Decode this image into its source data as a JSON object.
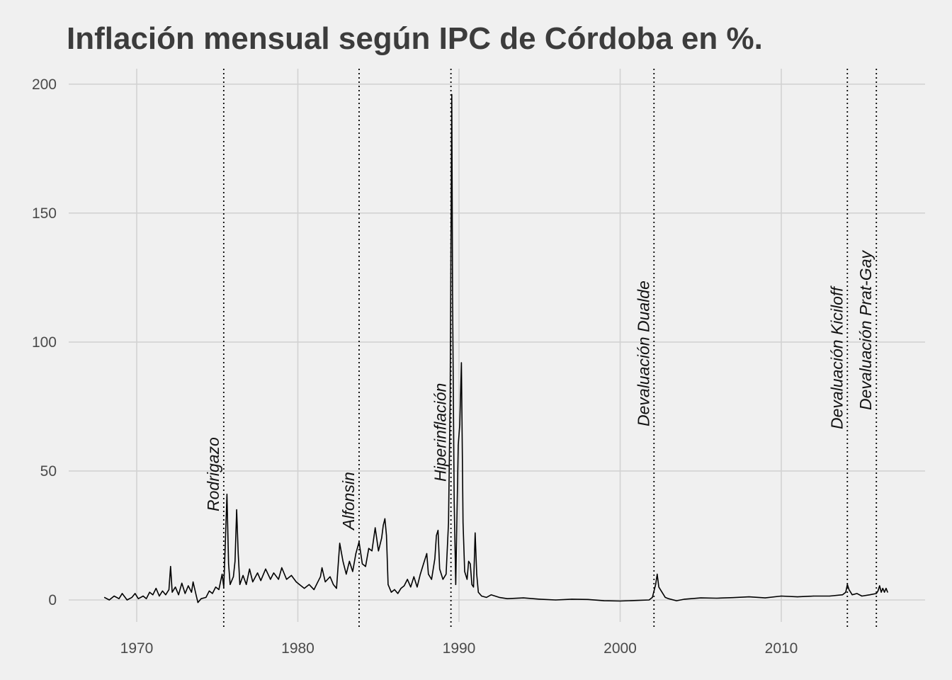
{
  "chart_data": {
    "type": "line",
    "title": "Inflación mensual según IPC de Córdoba en %.",
    "xlabel": "",
    "ylabel": "",
    "xlim": [
      1966.2,
      1991.0,
      2017.6
    ],
    "ylim": [
      -8,
      210
    ],
    "x_ticks": [
      1970,
      1980,
      1990,
      2000,
      2010
    ],
    "y_ticks": [
      0,
      50,
      100,
      150,
      200
    ],
    "grid": true,
    "line_color": "#000000",
    "background_color": "#f0f0f0",
    "grid_color": "#d2d2d2",
    "events": [
      {
        "label": "Rodrigazo",
        "x": 1975.4
      },
      {
        "label": "Alfonsin",
        "x": 1983.8
      },
      {
        "label": "Hiperinflación",
        "x": 1989.5
      },
      {
        "label": "Devaluación Dualde",
        "x": 2002.1
      },
      {
        "label": "Devaluación Kiciloff",
        "x": 2014.1
      },
      {
        "label": "Devaluación Prat-Gay",
        "x": 2015.9
      }
    ],
    "series": [
      {
        "values": [
          [
            1968.0,
            1.0
          ],
          [
            1968.3,
            0.0
          ],
          [
            1968.6,
            1.5
          ],
          [
            1968.9,
            0.5
          ],
          [
            1969.1,
            2.5
          ],
          [
            1969.4,
            0.0
          ],
          [
            1969.7,
            1.0
          ],
          [
            1969.9,
            2.5
          ],
          [
            1970.1,
            0.5
          ],
          [
            1970.4,
            1.5
          ],
          [
            1970.6,
            0.5
          ],
          [
            1970.8,
            3.0
          ],
          [
            1971.0,
            2.0
          ],
          [
            1971.2,
            4.5
          ],
          [
            1971.4,
            1.5
          ],
          [
            1971.6,
            3.5
          ],
          [
            1971.8,
            2.0
          ],
          [
            1972.0,
            4.0
          ],
          [
            1972.1,
            13.0
          ],
          [
            1972.2,
            3.0
          ],
          [
            1972.4,
            5.0
          ],
          [
            1972.6,
            2.0
          ],
          [
            1972.8,
            6.5
          ],
          [
            1973.0,
            2.5
          ],
          [
            1973.2,
            5.5
          ],
          [
            1973.4,
            3.0
          ],
          [
            1973.5,
            7.0
          ],
          [
            1973.7,
            1.5
          ],
          [
            1973.8,
            -1.0
          ],
          [
            1974.0,
            0.5
          ],
          [
            1974.3,
            1.0
          ],
          [
            1974.5,
            3.5
          ],
          [
            1974.7,
            2.5
          ],
          [
            1974.9,
            5.0
          ],
          [
            1975.1,
            4.0
          ],
          [
            1975.3,
            10.0
          ],
          [
            1975.4,
            5.0
          ],
          [
            1975.5,
            22.0
          ],
          [
            1975.6,
            41.0
          ],
          [
            1975.7,
            14.0
          ],
          [
            1975.8,
            6.0
          ],
          [
            1976.0,
            9.0
          ],
          [
            1976.1,
            15.0
          ],
          [
            1976.2,
            35.0
          ],
          [
            1976.3,
            18.0
          ],
          [
            1976.4,
            6.0
          ],
          [
            1976.6,
            9.5
          ],
          [
            1976.8,
            6.0
          ],
          [
            1977.0,
            12.0
          ],
          [
            1977.2,
            7.0
          ],
          [
            1977.5,
            10.5
          ],
          [
            1977.7,
            7.5
          ],
          [
            1978.0,
            12.0
          ],
          [
            1978.3,
            8.0
          ],
          [
            1978.5,
            10.5
          ],
          [
            1978.8,
            8.0
          ],
          [
            1979.0,
            12.5
          ],
          [
            1979.3,
            8.0
          ],
          [
            1979.6,
            9.5
          ],
          [
            1979.9,
            7.0
          ],
          [
            1980.1,
            6.0
          ],
          [
            1980.4,
            4.5
          ],
          [
            1980.7,
            6.0
          ],
          [
            1981.0,
            4.0
          ],
          [
            1981.2,
            6.5
          ],
          [
            1981.4,
            9.0
          ],
          [
            1981.5,
            12.5
          ],
          [
            1981.7,
            7.0
          ],
          [
            1982.0,
            9.0
          ],
          [
            1982.2,
            6.0
          ],
          [
            1982.4,
            4.5
          ],
          [
            1982.6,
            22.0
          ],
          [
            1982.8,
            15.0
          ],
          [
            1983.0,
            10.0
          ],
          [
            1983.2,
            15.0
          ],
          [
            1983.4,
            11.0
          ],
          [
            1983.6,
            18.0
          ],
          [
            1983.8,
            22.5
          ],
          [
            1984.0,
            14.0
          ],
          [
            1984.2,
            13.0
          ],
          [
            1984.4,
            20.0
          ],
          [
            1984.6,
            19.0
          ],
          [
            1984.8,
            28.0
          ],
          [
            1985.0,
            19.0
          ],
          [
            1985.2,
            24.0
          ],
          [
            1985.3,
            29.0
          ],
          [
            1985.4,
            31.5
          ],
          [
            1985.5,
            25.0
          ],
          [
            1985.6,
            6.0
          ],
          [
            1985.8,
            3.0
          ],
          [
            1986.0,
            4.0
          ],
          [
            1986.2,
            2.5
          ],
          [
            1986.4,
            4.5
          ],
          [
            1986.6,
            5.5
          ],
          [
            1986.8,
            8.0
          ],
          [
            1987.0,
            5.0
          ],
          [
            1987.2,
            9.0
          ],
          [
            1987.4,
            5.0
          ],
          [
            1987.6,
            10.0
          ],
          [
            1987.8,
            14.0
          ],
          [
            1988.0,
            18.0
          ],
          [
            1988.1,
            10.0
          ],
          [
            1988.3,
            8.0
          ],
          [
            1988.5,
            16.0
          ],
          [
            1988.6,
            25.0
          ],
          [
            1988.7,
            27.0
          ],
          [
            1988.8,
            12.0
          ],
          [
            1989.0,
            8.0
          ],
          [
            1989.2,
            10.0
          ],
          [
            1989.35,
            30.0
          ],
          [
            1989.45,
            78.0
          ],
          [
            1989.55,
            196.0
          ],
          [
            1989.6,
            119.0
          ],
          [
            1989.7,
            38.0
          ],
          [
            1989.8,
            6.0
          ],
          [
            1989.95,
            60.0
          ],
          [
            1990.05,
            68.0
          ],
          [
            1990.15,
            92.0
          ],
          [
            1990.25,
            30.0
          ],
          [
            1990.35,
            11.0
          ],
          [
            1990.5,
            8.0
          ],
          [
            1990.6,
            15.0
          ],
          [
            1990.7,
            14.0
          ],
          [
            1990.8,
            6.0
          ],
          [
            1990.9,
            5.0
          ],
          [
            1991.0,
            26.0
          ],
          [
            1991.1,
            10.0
          ],
          [
            1991.2,
            3.0
          ],
          [
            1991.4,
            1.5
          ],
          [
            1991.7,
            1.0
          ],
          [
            1992.0,
            2.0
          ],
          [
            1992.5,
            1.0
          ],
          [
            1993.0,
            0.5
          ],
          [
            1994.0,
            0.8
          ],
          [
            1995.0,
            0.3
          ],
          [
            1996.0,
            0.0
          ],
          [
            1997.0,
            0.3
          ],
          [
            1998.0,
            0.2
          ],
          [
            1999.0,
            -0.3
          ],
          [
            2000.0,
            -0.4
          ],
          [
            2001.0,
            -0.2
          ],
          [
            2001.8,
            0.0
          ],
          [
            2002.0,
            1.0
          ],
          [
            2002.2,
            6.0
          ],
          [
            2002.3,
            10.0
          ],
          [
            2002.4,
            5.0
          ],
          [
            2002.6,
            3.0
          ],
          [
            2002.8,
            1.0
          ],
          [
            2003.0,
            0.5
          ],
          [
            2003.5,
            -0.3
          ],
          [
            2004.0,
            0.3
          ],
          [
            2005.0,
            0.8
          ],
          [
            2006.0,
            0.7
          ],
          [
            2007.0,
            0.9
          ],
          [
            2008.0,
            1.2
          ],
          [
            2009.0,
            0.8
          ],
          [
            2010.0,
            1.5
          ],
          [
            2011.0,
            1.2
          ],
          [
            2012.0,
            1.5
          ],
          [
            2013.0,
            1.5
          ],
          [
            2013.8,
            2.0
          ],
          [
            2014.0,
            3.0
          ],
          [
            2014.1,
            6.0
          ],
          [
            2014.2,
            4.0
          ],
          [
            2014.4,
            2.0
          ],
          [
            2014.7,
            2.5
          ],
          [
            2015.0,
            1.5
          ],
          [
            2015.5,
            2.0
          ],
          [
            2015.9,
            2.5
          ],
          [
            2016.0,
            3.5
          ],
          [
            2016.1,
            5.5
          ],
          [
            2016.2,
            3.0
          ],
          [
            2016.3,
            4.5
          ],
          [
            2016.4,
            3.0
          ],
          [
            2016.5,
            4.5
          ],
          [
            2016.6,
            3.0
          ]
        ]
      }
    ]
  }
}
